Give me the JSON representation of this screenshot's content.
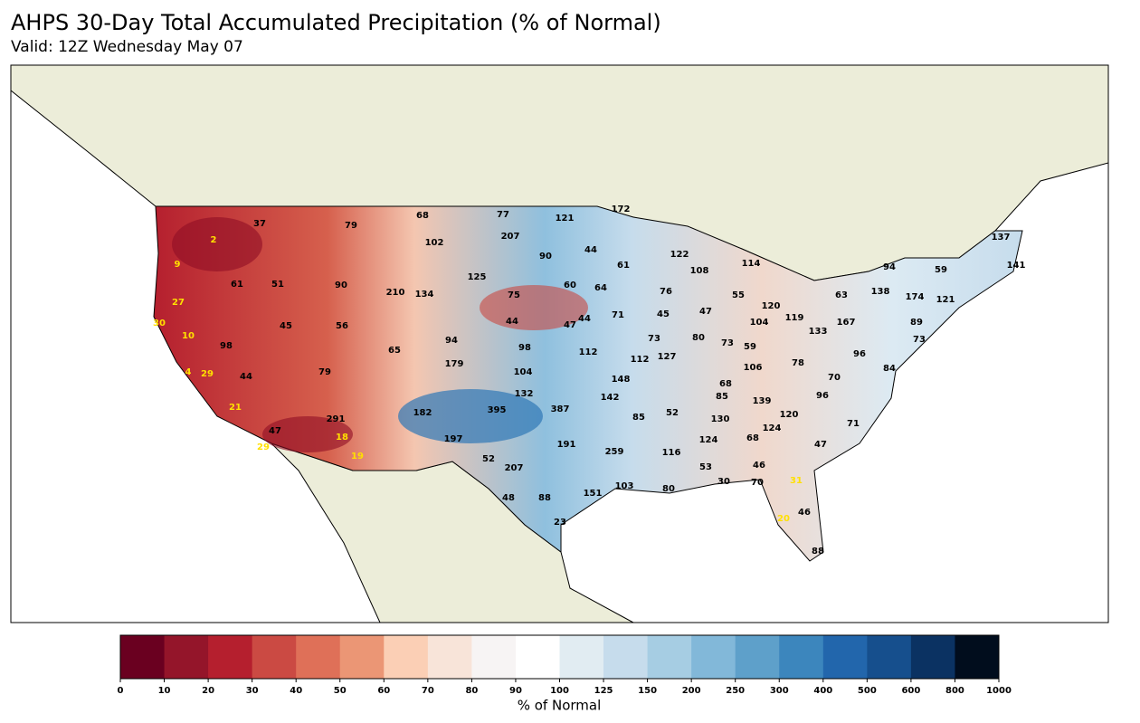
{
  "header": {
    "title": "AHPS 30-Day Total Accumulated Precipitation (% of Normal)",
    "subtitle": "Valid: 12Z Wednesday May 07"
  },
  "stations": [
    {
      "color": "#ffe000",
      "values": [
        2,
        9,
        27,
        30,
        10,
        4,
        29,
        21,
        29,
        18,
        19,
        31,
        20
      ]
    },
    {
      "color": "#000000",
      "values": [
        37,
        79,
        68,
        77,
        121,
        172,
        207,
        102,
        90,
        44,
        61,
        122,
        108,
        114,
        94,
        59,
        137,
        141,
        61,
        51,
        90,
        210,
        134,
        125,
        75,
        60,
        64,
        76,
        55,
        120,
        63,
        138,
        174,
        121,
        45,
        56,
        44,
        47,
        44,
        71,
        45,
        47,
        104,
        119,
        167,
        133,
        89,
        98,
        65,
        94,
        98,
        112,
        73,
        80,
        73,
        59,
        73,
        79,
        179,
        104,
        112,
        127,
        96,
        106,
        78,
        84,
        44,
        148,
        70,
        68,
        132,
        142,
        85,
        139,
        96,
        291,
        182,
        395,
        387,
        85,
        52,
        130,
        120,
        71,
        47,
        197,
        191,
        124,
        68,
        124,
        47,
        259,
        116,
        52,
        207,
        53,
        46,
        30,
        70,
        48,
        88,
        151,
        103,
        80,
        23,
        46,
        88
      ]
    }
  ],
  "colorbar": {
    "label": "% of Normal",
    "ticks": [
      0,
      10,
      20,
      30,
      40,
      50,
      60,
      70,
      80,
      90,
      100,
      125,
      150,
      200,
      250,
      300,
      400,
      500,
      600,
      800,
      1000
    ],
    "colors": [
      "#6a0020",
      "#94152a",
      "#b51f2e",
      "#cb4a43",
      "#df7058",
      "#eb9675",
      "#fbcfb5",
      "#f8e4d9",
      "#f7f4f4",
      "#ffffff",
      "#e1ecf2",
      "#c6dcec",
      "#a6cde3",
      "#82b8d9",
      "#5ea0ca",
      "#3c86bd",
      "#2266ac",
      "#164f8d",
      "#0b3262",
      "#010d1d"
    ]
  }
}
